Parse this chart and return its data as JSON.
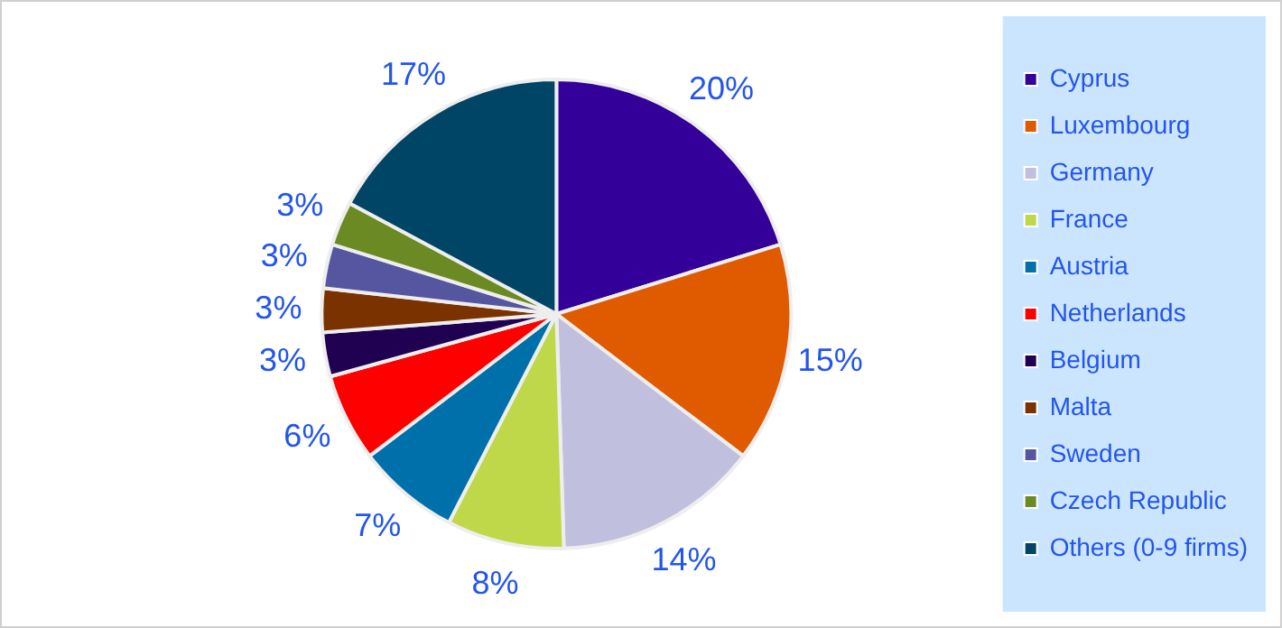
{
  "chart_data": {
    "type": "pie",
    "categories": [
      "Cyprus",
      "Luxembourg",
      "Germany",
      "France",
      "Austria",
      "Netherlands",
      "Belgium",
      "Malta",
      "Sweden",
      "Czech Republic",
      "Others (0-9 firms)"
    ],
    "values": [
      20,
      15,
      14,
      8,
      7,
      6,
      3,
      3,
      3,
      3,
      17
    ],
    "value_labels": [
      "20%",
      "15%",
      "14%",
      "8%",
      "7%",
      "6%",
      "3%",
      "3%",
      "3%",
      "3%",
      "17%"
    ],
    "colors": [
      "#330099",
      "#e05a00",
      "#c0c0de",
      "#bfd84a",
      "#0070aa",
      "#ff0000",
      "#200050",
      "#7a3300",
      "#5555a0",
      "#6b8a23",
      "#004466"
    ],
    "legend": "right"
  }
}
